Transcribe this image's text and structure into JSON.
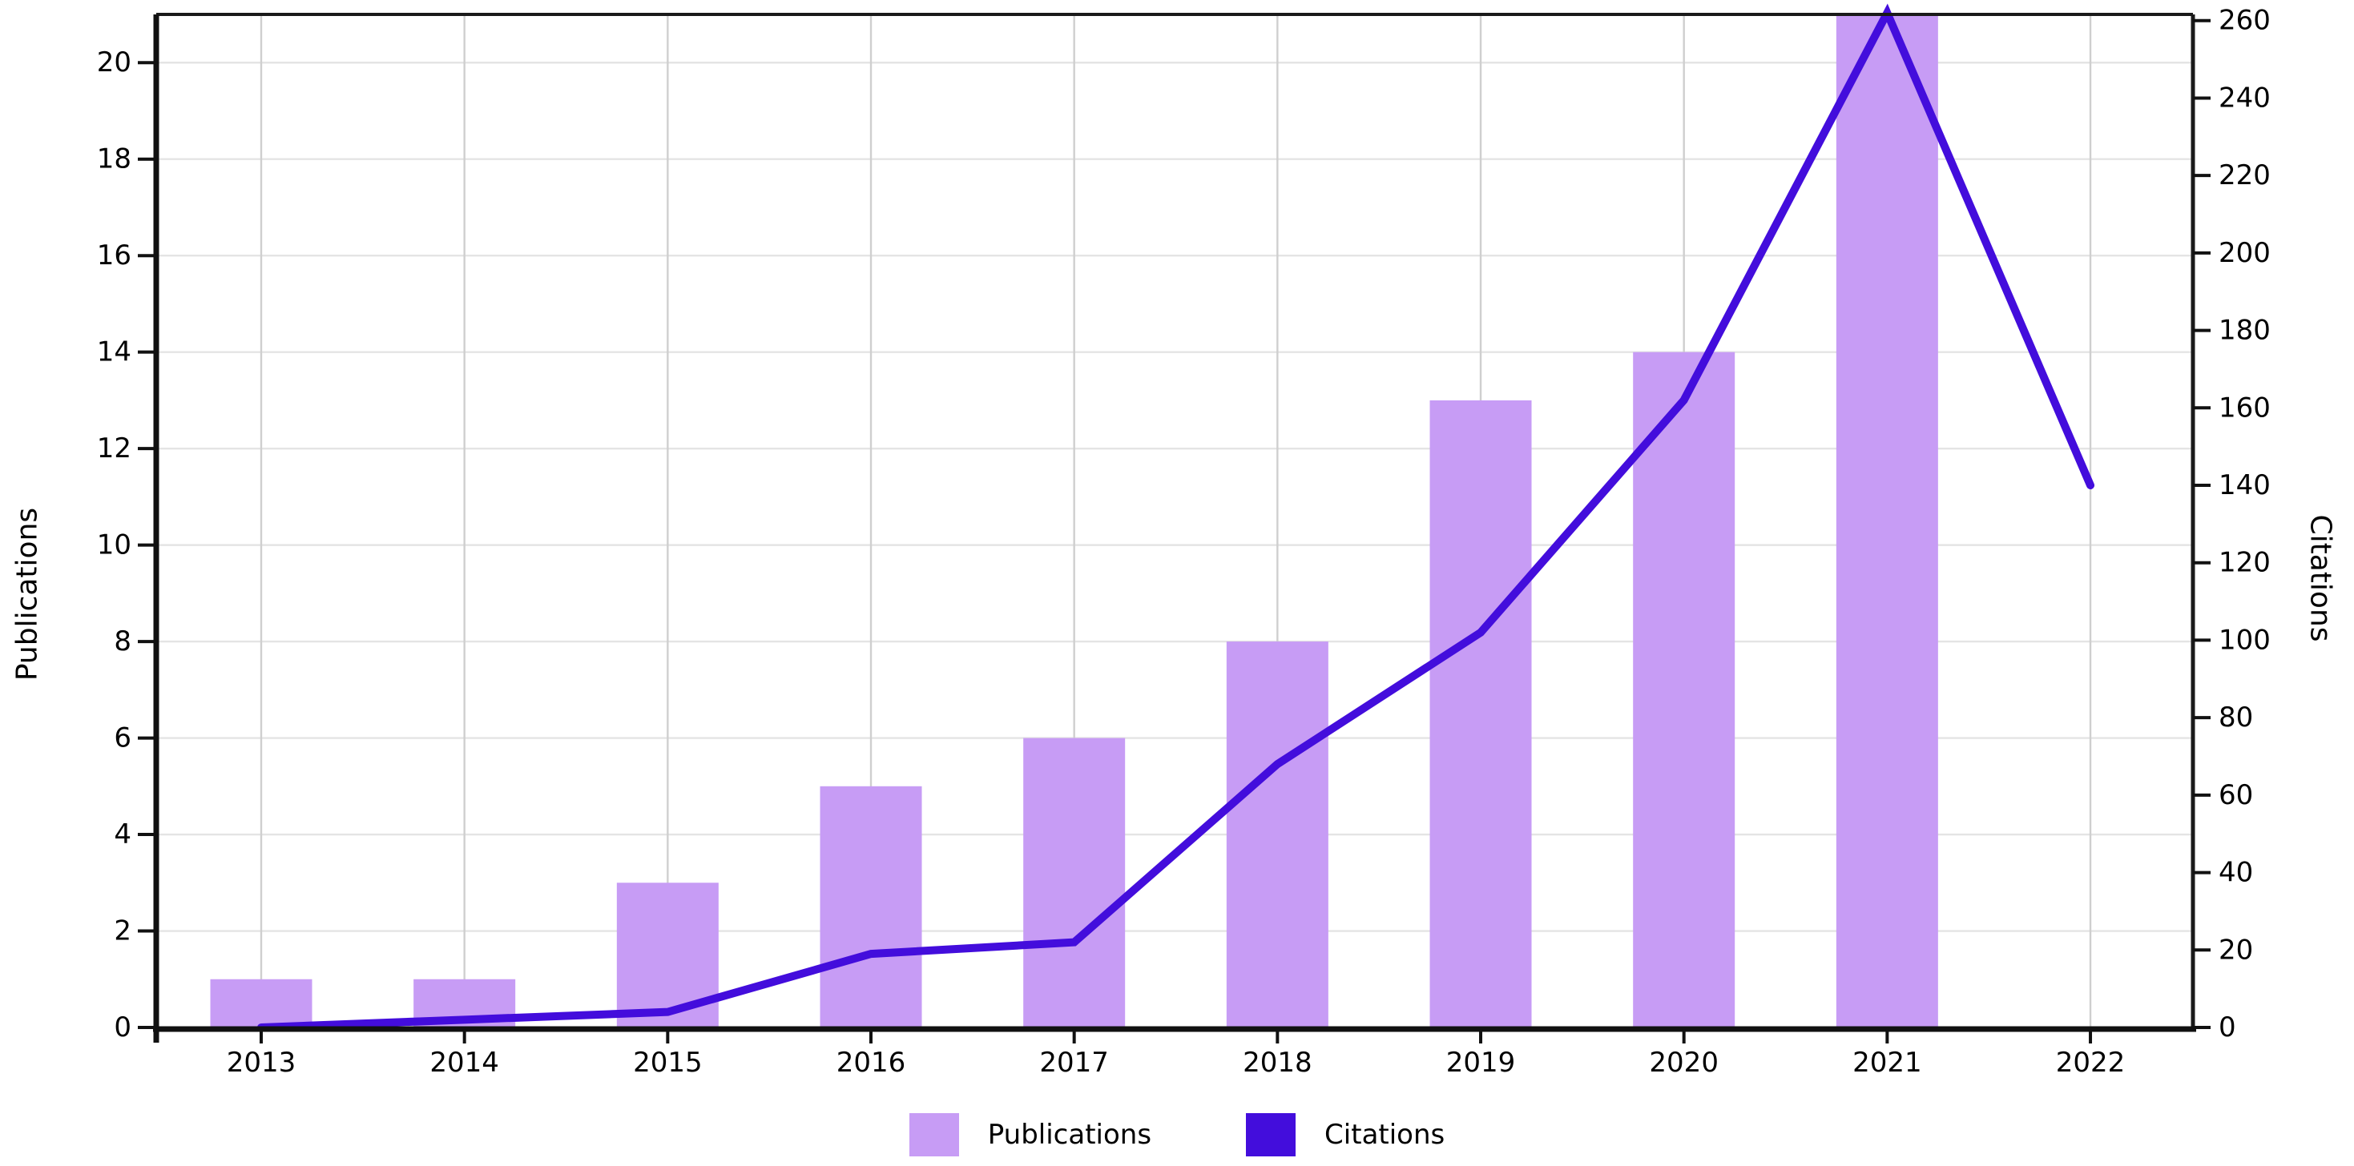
{
  "chart_data": {
    "type": "combo-bar-line",
    "title": "",
    "categories": [
      "2013",
      "2014",
      "2015",
      "2016",
      "2017",
      "2018",
      "2019",
      "2020",
      "2021",
      "2022"
    ],
    "series": [
      {
        "name": "Publications",
        "type": "bar",
        "axis": "left",
        "color": "#C79CF5",
        "values": [
          1,
          1,
          3,
          5,
          6,
          8,
          13,
          14,
          21,
          0
        ]
      },
      {
        "name": "Citations",
        "type": "line",
        "axis": "right",
        "color": "#430DDC",
        "values": [
          0,
          2,
          4,
          19,
          22,
          68,
          102,
          162,
          262,
          140
        ]
      }
    ],
    "left_axis": {
      "label": "Publications",
      "ticks": [
        0,
        2,
        4,
        6,
        8,
        10,
        12,
        14,
        16,
        18,
        20
      ],
      "range": [
        0,
        21
      ]
    },
    "right_axis": {
      "label": "Citations",
      "ticks": [
        0,
        20,
        40,
        60,
        80,
        100,
        120,
        140,
        160,
        180,
        200,
        220,
        240,
        260
      ],
      "range": [
        0,
        261.6
      ]
    },
    "x_axis": {
      "ticks": [
        "2013",
        "2014",
        "2015",
        "2016",
        "2017",
        "2018",
        "2019",
        "2020",
        "2021",
        "2022"
      ]
    },
    "legend": {
      "position": "bottom-center",
      "entries": [
        {
          "label": "Publications",
          "color": "#C79CF5"
        },
        {
          "label": "Citations",
          "color": "#430DDC"
        }
      ]
    },
    "grid": true,
    "background": "#ffffff",
    "grid_color_h": "#e4e4e4",
    "grid_color_v": "#cfcfcf",
    "spine_color": "#1a1a1a"
  }
}
